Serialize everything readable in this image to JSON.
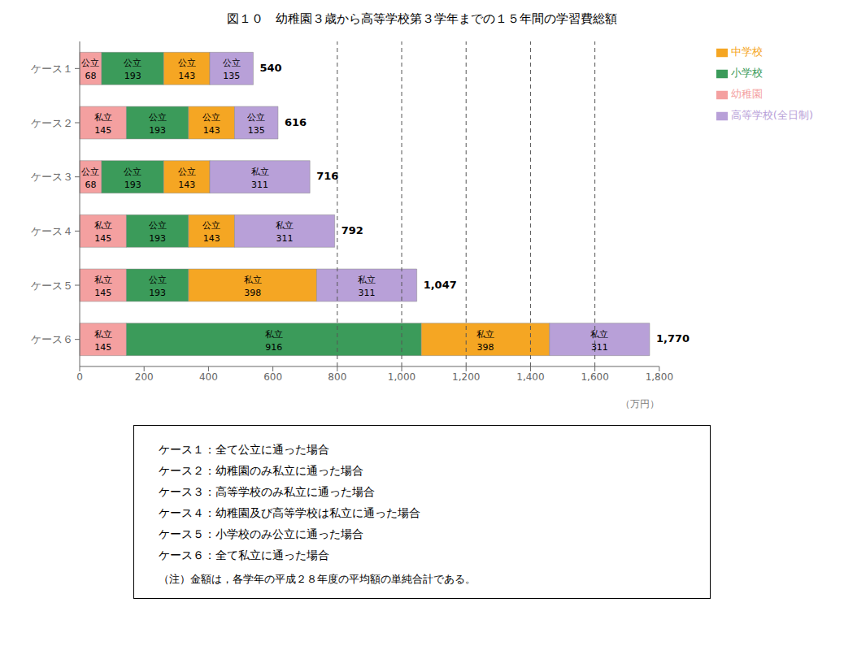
{
  "chart_data": {
    "type": "bar",
    "orientation": "horizontal",
    "stacked": true,
    "title": "図１０　幼稚園３歳から高等学校第３学年までの１５年間の学習費総額",
    "categories": [
      "ケース１",
      "ケース２",
      "ケース３",
      "ケース４",
      "ケース５",
      "ケース６"
    ],
    "series": [
      {
        "name": "幼稚園",
        "color": "#F4A0A0",
        "values": [
          68,
          145,
          68,
          145,
          145,
          145
        ],
        "labels": [
          "公立",
          "私立",
          "公立",
          "私立",
          "私立",
          "私立"
        ]
      },
      {
        "name": "小学校",
        "color": "#3B9B5A",
        "values": [
          193,
          193,
          193,
          193,
          193,
          916
        ],
        "labels": [
          "公立",
          "公立",
          "公立",
          "公立",
          "公立",
          "私立"
        ]
      },
      {
        "name": "中学校",
        "color": "#F5A623",
        "values": [
          143,
          143,
          143,
          143,
          398,
          398
        ],
        "labels": [
          "公立",
          "公立",
          "公立",
          "公立",
          "私立",
          "私立"
        ]
      },
      {
        "name": "高等学校(全日制)",
        "color": "#B8A0D8",
        "values": [
          135,
          135,
          311,
          311,
          311,
          311
        ],
        "labels": [
          "公立",
          "公立",
          "私立",
          "私立",
          "私立",
          "私立"
        ]
      }
    ],
    "totals": [
      "540",
      "616",
      "716",
      "792",
      "1,047",
      "1,770"
    ],
    "xlabel": "（万円）",
    "xlim": [
      0,
      1800
    ],
    "xticks": [
      0,
      200,
      400,
      600,
      800,
      {
        "value": 1000,
        "label": "1,000"
      },
      {
        "value": 1200,
        "label": "1,200"
      },
      {
        "value": 1400,
        "label": "1,400"
      },
      {
        "value": 1600,
        "label": "1,600"
      },
      {
        "value": 1800,
        "label": "1,800"
      }
    ],
    "reference_lines_x": [
      800,
      1000,
      1200,
      1400,
      1600
    ],
    "data_labels": true,
    "grid": false,
    "legend": "upper right",
    "notes": [
      "ケース１：全て公立に通った場合",
      "ケース２：幼稚園のみ私立に通った場合",
      "ケース３：高等学校のみ私立に通った場合",
      "ケース４：幼稚園及び高等学校は私立に通った場合",
      "ケース５：小学校のみ公立に通った場合",
      "ケース６：全て私立に通った場合"
    ],
    "note_annotation": "（注）金額は，各学年の平成２８年度の平均額の単純合計である。"
  }
}
